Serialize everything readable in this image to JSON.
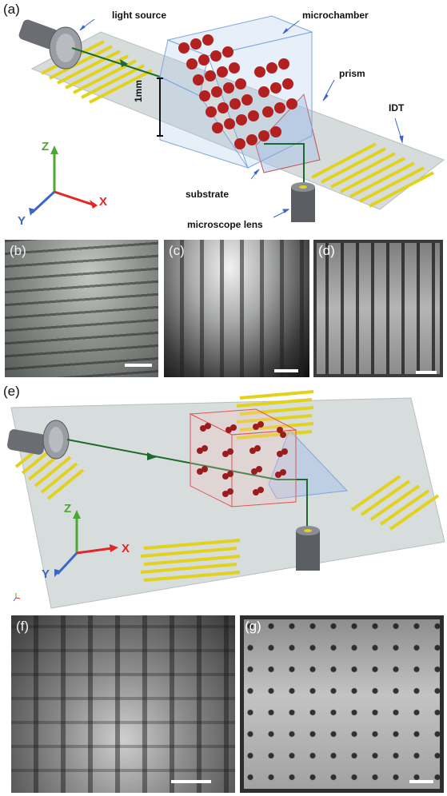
{
  "panels": {
    "a": "(a)",
    "b": "(b)",
    "c": "(c)",
    "d": "(d)",
    "e": "(e)",
    "f": "(f)",
    "g": "(g)"
  },
  "labels": {
    "light_source": "light source",
    "microchamber": "microchamber",
    "prism": "prism",
    "idt": "IDT",
    "height": "1mm",
    "substrate": "substrate",
    "microscope_lens": "microscope lens"
  },
  "axes_a": {
    "z": "Z",
    "x": "X",
    "y": "Y"
  },
  "axes_e": {
    "z": "Z",
    "x": "X",
    "y": "Y"
  },
  "colors": {
    "idt_gold": "#e3d21b",
    "particle_red": "#b32020",
    "axis_z": "#4ca832",
    "axis_x": "#e32626",
    "axis_y": "#3a66c8",
    "chamber_blue": "#a9c4ea",
    "chamber_red_outline": "#e05555",
    "light_beam": "#1a6b2a",
    "substrate": "#d7dcdc"
  }
}
